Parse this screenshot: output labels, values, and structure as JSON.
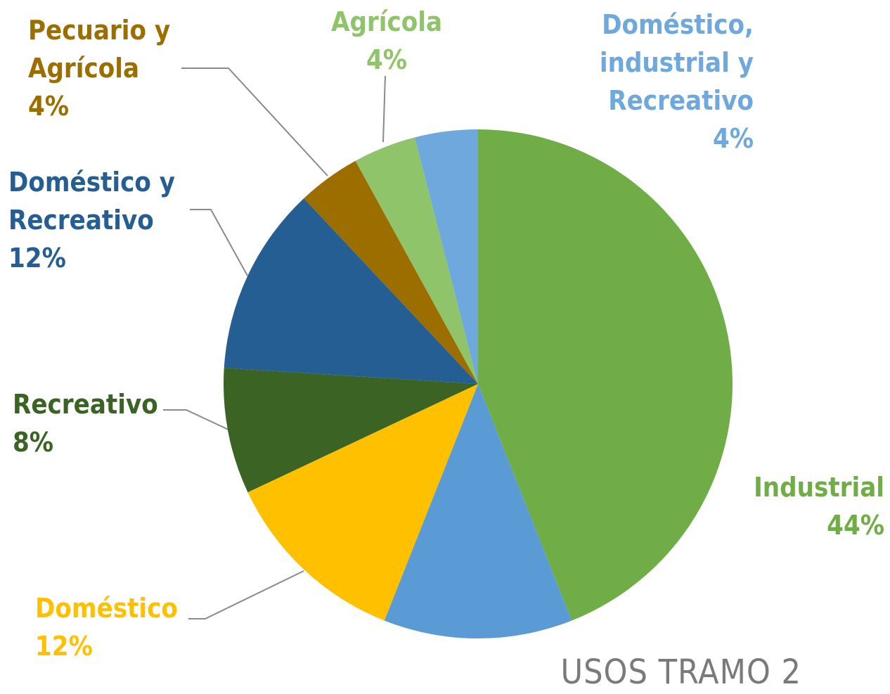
{
  "chart_data": {
    "type": "pie",
    "title": "USOS TRAMO 2",
    "categories": [
      "Industrial",
      null,
      "Doméstico",
      "Recreativo",
      "Doméstico y Recreativo",
      "Pecuario y Agrícola",
      "Agrícola",
      "Doméstico, industrial y Recreativo"
    ],
    "values": [
      44,
      12,
      12,
      8,
      12,
      4,
      4,
      4
    ],
    "value_labels": [
      "44%",
      null,
      "12%",
      "8%",
      "12%",
      "4%",
      "4%",
      "4%"
    ],
    "colors": [
      "#70ad47",
      "#5b9bd5",
      "#ffc000",
      "#3b6424",
      "#245e93",
      "#9c6e00",
      "#8fc46a",
      "#6fa8dc"
    ]
  }
}
